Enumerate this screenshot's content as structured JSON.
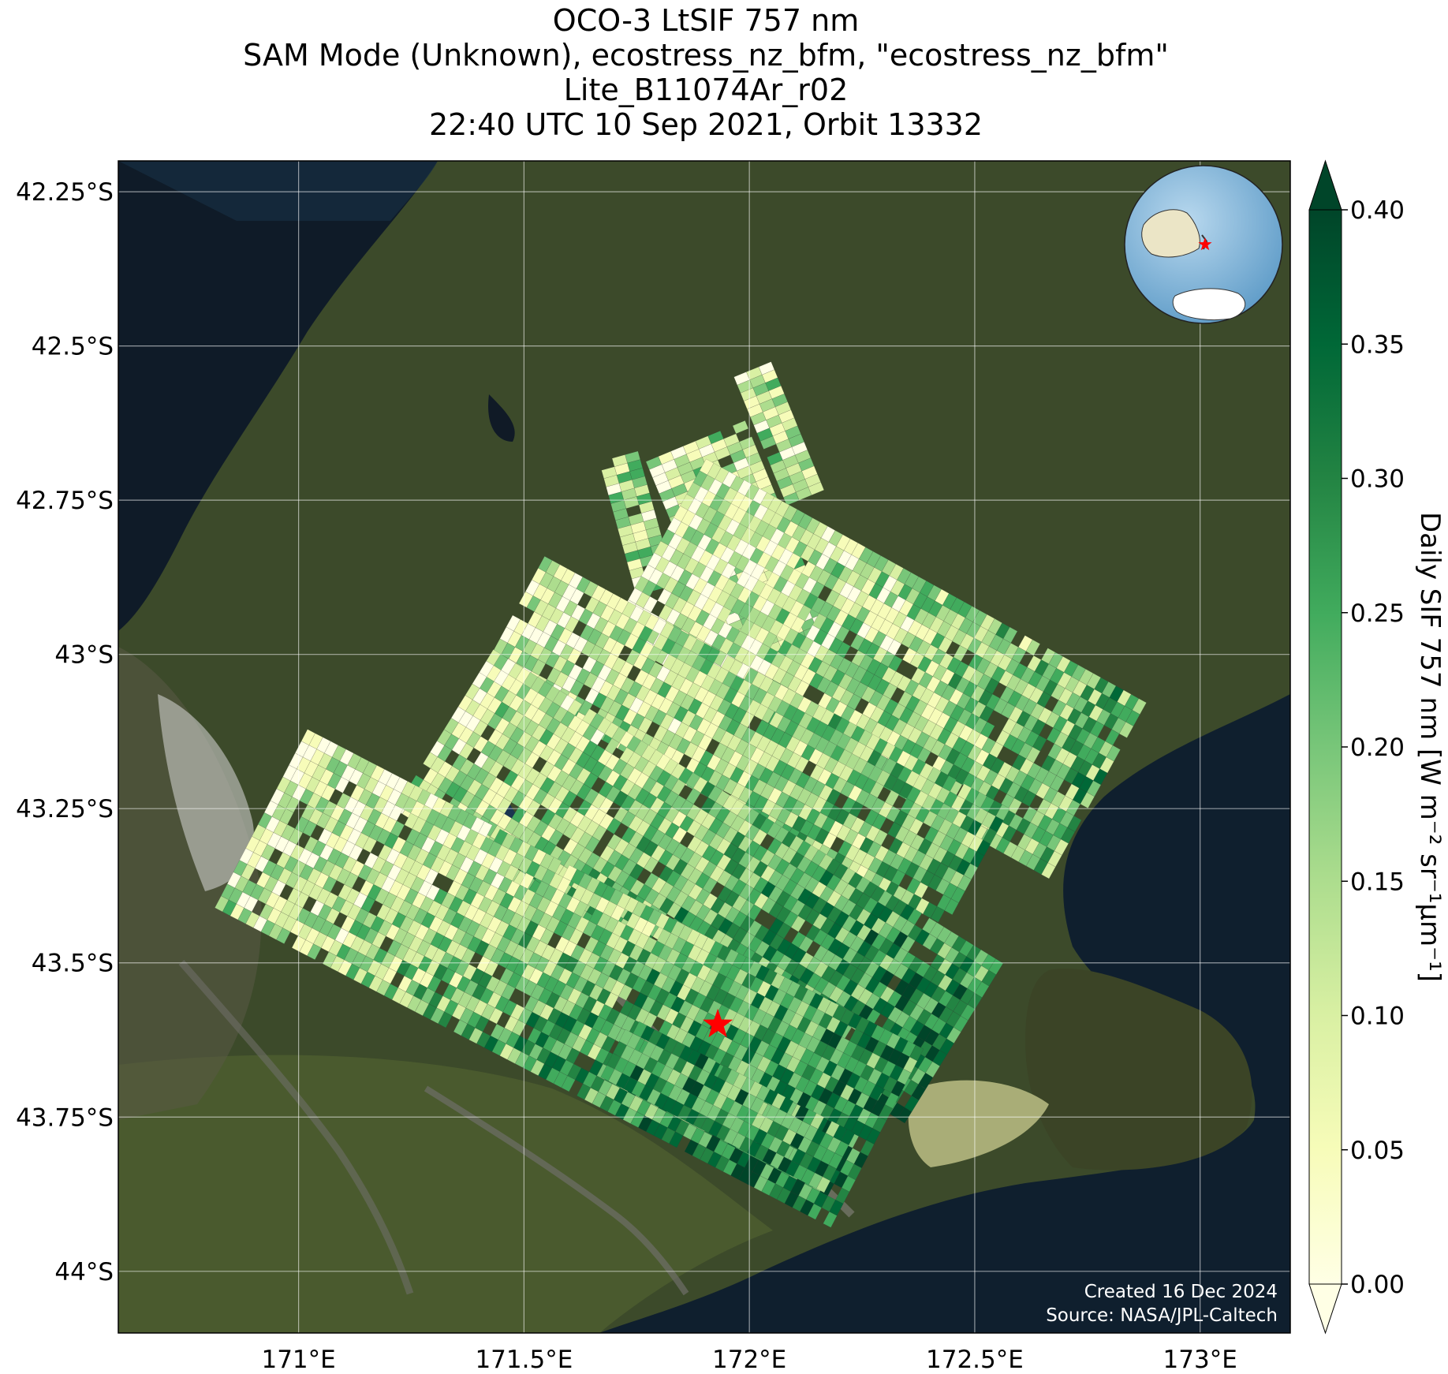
{
  "title_lines": [
    "OCO-3 LtSIF 757 nm",
    "SAM Mode (Unknown), ecostress_nz_bfm, \"ecostress_nz_bfm\"",
    "Lite_B11074Ar_r02",
    "22:40 UTC 10 Sep 2021, Orbit 13332"
  ],
  "axes": {
    "lon_ticks": [
      {
        "value": 171.0,
        "label": "171°E"
      },
      {
        "value": 171.5,
        "label": "171.5°E"
      },
      {
        "value": 172.0,
        "label": "172°E"
      },
      {
        "value": 172.5,
        "label": "172.5°E"
      },
      {
        "value": 173.0,
        "label": "173°E"
      }
    ],
    "lat_ticks": [
      {
        "value": -42.25,
        "label": "42.25°S"
      },
      {
        "value": -42.5,
        "label": "42.5°S"
      },
      {
        "value": -42.75,
        "label": "42.75°S"
      },
      {
        "value": -43.0,
        "label": "43°S"
      },
      {
        "value": -43.25,
        "label": "43.25°S"
      },
      {
        "value": -43.5,
        "label": "43.5°S"
      },
      {
        "value": -43.75,
        "label": "43.75°S"
      },
      {
        "value": -44.0,
        "label": "44°S"
      }
    ],
    "lon_range": [
      170.6,
      173.2
    ],
    "lat_range": [
      -44.1,
      -42.2
    ],
    "grid": true
  },
  "colorbar": {
    "label": "Daily SIF 757 nm [W m⁻² sr⁻¹µm⁻¹]",
    "range": [
      0.0,
      0.4
    ],
    "extend": "both",
    "colormap": "YlGn",
    "ticks": [
      "0.00",
      "0.05",
      "0.10",
      "0.15",
      "0.20",
      "0.25",
      "0.30",
      "0.35",
      "0.40"
    ]
  },
  "target": {
    "lon": 171.93,
    "lat": -43.6,
    "color": "#ff0000",
    "marker": "star"
  },
  "inset_globe": {
    "marker_color": "#ff0000",
    "marker": "star"
  },
  "credits": [
    "Created 16 Dec 2024",
    "Source: NASA/JPL-Caltech"
  ]
}
